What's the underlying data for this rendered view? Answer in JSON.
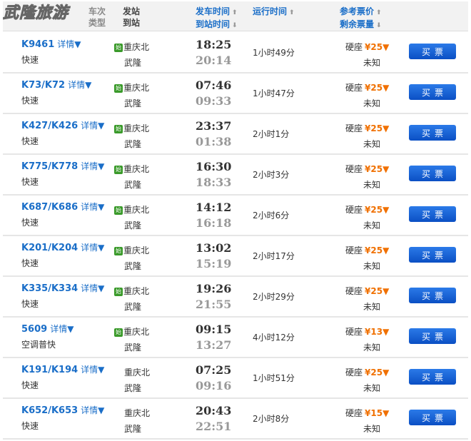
{
  "watermark": "武隆旅游",
  "header": {
    "train": "车次",
    "type": "类型",
    "from": "发站",
    "to": "到站",
    "dep": "发车时间",
    "arr": "到站时间",
    "dur": "运行时间",
    "price": "参考票价",
    "remain": "剩余票量",
    "sort_up": "⬆",
    "sort_down": "⬇"
  },
  "colors": {
    "link": "#1a6ec8",
    "price": "#f07000",
    "button": "#1a62d8"
  },
  "detail_label": "详情▼",
  "start_badge": "始",
  "buy_label": "买票",
  "rows": [
    {
      "train": "K9461",
      "type": "快速",
      "from": "重庆北",
      "to": "武隆",
      "dep": "18:25",
      "arr": "20:14",
      "dur": "1小时49分",
      "seat": "硬座",
      "price": "¥25▼",
      "remain": "未知",
      "start": true
    },
    {
      "train": "K73/K72",
      "type": "快速",
      "from": "重庆北",
      "to": "武隆",
      "dep": "07:46",
      "arr": "09:33",
      "dur": "1小时47分",
      "seat": "硬座",
      "price": "¥25▼",
      "remain": "未知",
      "start": true
    },
    {
      "train": "K427/K426",
      "type": "快速",
      "from": "重庆北",
      "to": "武隆",
      "dep": "23:37",
      "arr": "01:38",
      "dur": "2小时1分",
      "seat": "硬座",
      "price": "¥25▼",
      "remain": "未知",
      "start": true
    },
    {
      "train": "K775/K778",
      "type": "快速",
      "from": "重庆北",
      "to": "武隆",
      "dep": "16:30",
      "arr": "18:33",
      "dur": "2小时3分",
      "seat": "硬座",
      "price": "¥25▼",
      "remain": "未知",
      "start": true
    },
    {
      "train": "K687/K686",
      "type": "快速",
      "from": "重庆北",
      "to": "武隆",
      "dep": "14:12",
      "arr": "16:18",
      "dur": "2小时6分",
      "seat": "硬座",
      "price": "¥25▼",
      "remain": "未知",
      "start": true
    },
    {
      "train": "K201/K204",
      "type": "快速",
      "from": "重庆北",
      "to": "武隆",
      "dep": "13:02",
      "arr": "15:19",
      "dur": "2小时17分",
      "seat": "硬座",
      "price": "¥25▼",
      "remain": "未知",
      "start": true
    },
    {
      "train": "K335/K334",
      "type": "快速",
      "from": "重庆北",
      "to": "武隆",
      "dep": "19:26",
      "arr": "21:55",
      "dur": "2小时29分",
      "seat": "硬座",
      "price": "¥25▼",
      "remain": "未知",
      "start": true
    },
    {
      "train": "5609",
      "type": "空调普快",
      "from": "重庆北",
      "to": "武隆",
      "dep": "09:15",
      "arr": "13:27",
      "dur": "4小时12分",
      "seat": "硬座",
      "price": "¥13▼",
      "remain": "未知",
      "start": true
    },
    {
      "train": "K191/K194",
      "type": "快速",
      "from": "重庆北",
      "to": "武隆",
      "dep": "07:25",
      "arr": "09:16",
      "dur": "1小时51分",
      "seat": "硬座",
      "price": "¥25▼",
      "remain": "未知",
      "start": false
    },
    {
      "train": "K652/K653",
      "type": "快速",
      "from": "重庆北",
      "to": "武隆",
      "dep": "20:43",
      "arr": "22:51",
      "dur": "2小时8分",
      "seat": "硬座",
      "price": "¥15▼",
      "remain": "未知",
      "start": false
    }
  ]
}
